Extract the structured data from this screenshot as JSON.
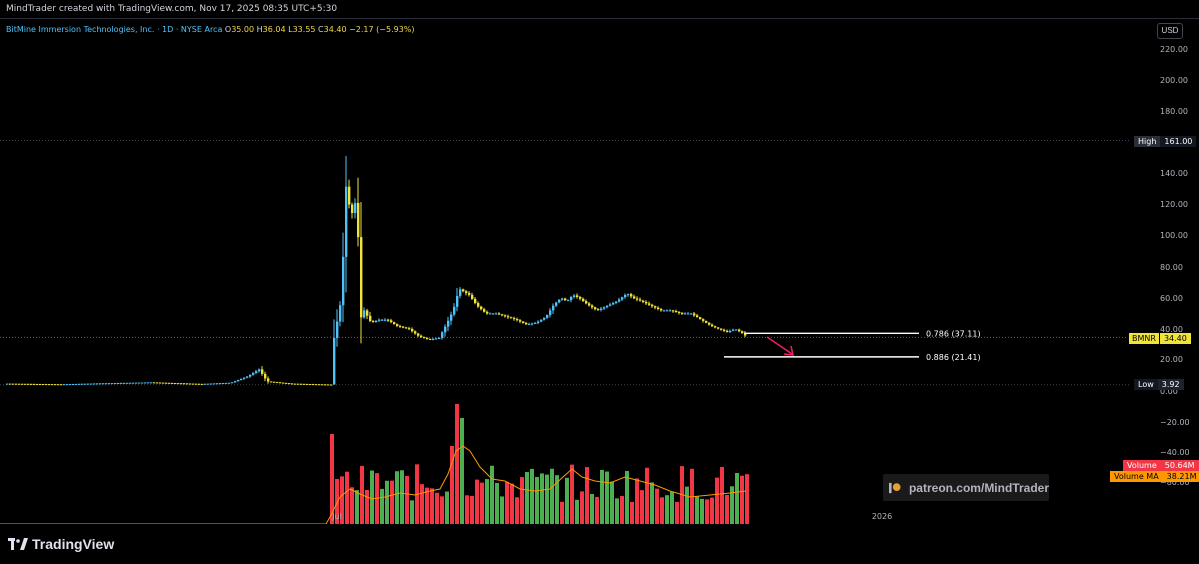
{
  "header": {
    "credit": "MindTrader created with TradingView.com, Nov 17, 2025 08:35 UTC+5:30"
  },
  "legend": {
    "symbol": "BitMine Immersion Technologies, Inc. · 1D · NYSE Arca",
    "o_label": "O",
    "o": "35.00",
    "h_label": "H",
    "h": "36.04",
    "l_label": "L",
    "l": "33.55",
    "c_label": "C",
    "c": "34.40",
    "change": "−2.17 (−5.93%)"
  },
  "currency_button": "USD",
  "price_axis": {
    "labels": [
      "220.00",
      "200.00",
      "180.00",
      "160.00",
      "140.00",
      "120.00",
      "100.00",
      "80.00",
      "60.00",
      "40.00",
      "20.00",
      "0.00"
    ],
    "volume_labels": [
      "−20.00",
      "−40.00",
      "−60.00",
      "−80.00"
    ]
  },
  "tags": {
    "high_label": "High",
    "high_value": "161.00",
    "low_label": "Low",
    "low_value": "3.92",
    "ticker": "BMNR",
    "last_price": "34.40",
    "volume_label": "Volume",
    "volume_value": "50.64M",
    "volume_ma_label": "Volume MA",
    "volume_ma_value": "38.21M"
  },
  "fib_levels": [
    {
      "label": "0.786 (37.11)",
      "price": 37.11
    },
    {
      "label": "0.886 (21.41)",
      "price": 21.41
    }
  ],
  "time_axis": {
    "labels": [
      "Jul",
      "2026"
    ]
  },
  "watermark": {
    "text": "patreon.com/MindTrader"
  },
  "footer": {
    "brand": "TradingView"
  },
  "colors": {
    "up": "#4fc3f7",
    "down": "#f0e33a",
    "vol_up": "#4caf50",
    "vol_down": "#f23645",
    "vol_ma": "#ff9800",
    "fib": "#ffffff",
    "arrow": "#e91e63",
    "high_tag_bg": "#2a2e39",
    "low_tag_bg": "#131722",
    "ticker_tag_bg": "#f0e33a",
    "volume_tag_bg": "#f23645",
    "volume_ma_tag_bg": "#ff9800"
  },
  "chart_data": {
    "type": "candlestick",
    "ohlc_approx": [
      {
        "date": "2025-06-26",
        "close": 4.3
      },
      {
        "date": "2025-06-30",
        "close": 34.0
      },
      {
        "date": "2025-07-03",
        "close": 135.0,
        "high": 161.0
      },
      {
        "date": "2025-07-08",
        "close": 46.0
      },
      {
        "date": "2025-08-01",
        "close": 33.0
      },
      {
        "date": "2025-08-12",
        "close": 64.0
      },
      {
        "date": "2025-10-08",
        "close": 62.0
      },
      {
        "date": "2025-11-14",
        "close": 34.4
      }
    ],
    "high": 161.0,
    "low": 3.92,
    "last": 34.4,
    "volume_last": "50.64M",
    "volume_ma_last": "38.21M",
    "ylim": [
      0,
      220
    ]
  }
}
